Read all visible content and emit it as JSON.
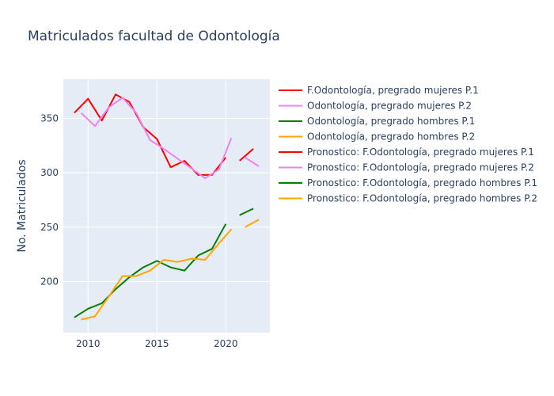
{
  "chart_data": {
    "type": "line",
    "title": "Matriculados facultad de Odontología",
    "xlabel": "",
    "ylabel": "No. Matriculados",
    "xlim": [
      2008.2,
      2023.2
    ],
    "ylim": [
      153,
      386
    ],
    "x_ticks": [
      2010,
      2015,
      2020
    ],
    "y_ticks": [
      200,
      250,
      300,
      350
    ],
    "grid": true,
    "legend_position": "right",
    "series": [
      {
        "name": "F.Odontología, pregrado mujeres P.1",
        "color": "#ff0000",
        "x": [
          2009,
          2010,
          2011,
          2012,
          2013,
          2014,
          2015,
          2016,
          2017,
          2018,
          2019,
          2020
        ],
        "y": [
          355,
          368,
          348,
          372,
          365,
          342,
          331,
          305,
          311,
          298,
          298,
          314
        ]
      },
      {
        "name": "Odontología, pregrado mujeres P.2",
        "color": "#ee82ee",
        "x": [
          2009.5,
          2010.5,
          2011.5,
          2012.5,
          2013.5,
          2014.5,
          2015.5,
          2016.5,
          2017.5,
          2018.5,
          2019.5,
          2020.4
        ],
        "y": [
          355,
          343,
          360,
          369,
          355,
          330,
          322,
          313,
          304,
          295,
          303,
          332
        ]
      },
      {
        "name": "Odontología, pregrado hombres P.1",
        "color": "#008000",
        "x": [
          2009,
          2010,
          2011,
          2012,
          2013,
          2014,
          2015,
          2016,
          2017,
          2018,
          2019,
          2020
        ],
        "y": [
          167,
          175,
          180,
          193,
          204,
          213,
          219,
          213,
          210,
          224,
          230,
          253
        ]
      },
      {
        "name": "Odontología, pregrado hombres P.2",
        "color": "#ffa500",
        "x": [
          2009.5,
          2010.5,
          2011.5,
          2012.5,
          2013.5,
          2014.5,
          2015.5,
          2016.5,
          2017.5,
          2018.5,
          2019.5,
          2020.4
        ],
        "y": [
          165,
          168,
          186,
          205,
          205,
          210,
          220,
          218,
          221,
          220,
          235,
          248
        ]
      },
      {
        "name": "Pronostico: F.Odontología, pregrado mujeres P.1",
        "color": "#ff0000",
        "x": [
          2021,
          2022
        ],
        "y": [
          311,
          322
        ]
      },
      {
        "name": "Pronostico: F.Odontología, pregrado mujeres P.2",
        "color": "#ee82ee",
        "x": [
          2021.4,
          2022.4
        ],
        "y": [
          314,
          306
        ]
      },
      {
        "name": "Pronostico: F.Odontología, pregrado hombres P.1",
        "color": "#008000",
        "x": [
          2021,
          2022
        ],
        "y": [
          261,
          267
        ]
      },
      {
        "name": "Pronostico: F.Odontología, pregrado hombres P.2",
        "color": "#ffa500",
        "x": [
          2021.4,
          2022.4
        ],
        "y": [
          250,
          257
        ]
      }
    ]
  }
}
